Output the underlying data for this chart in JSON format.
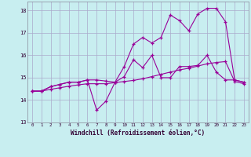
{
  "xlabel": "Windchill (Refroidissement éolien,°C)",
  "bg_color": "#c8eef0",
  "grid_color": "#aaaacc",
  "line_color": "#990099",
  "xmin": -0.5,
  "xmax": 23.5,
  "ymin": 13,
  "ymax": 18.4,
  "yticks": [
    13,
    14,
    15,
    16,
    17,
    18
  ],
  "xticks": [
    0,
    1,
    2,
    3,
    4,
    5,
    6,
    7,
    8,
    9,
    10,
    11,
    12,
    13,
    14,
    15,
    16,
    17,
    18,
    19,
    20,
    21,
    22,
    23
  ],
  "line1_x": [
    0,
    1,
    2,
    3,
    4,
    5,
    6,
    7,
    8,
    9,
    10,
    11,
    12,
    13,
    14,
    15,
    16,
    17,
    18,
    19,
    20,
    21,
    22,
    23
  ],
  "line1_y": [
    14.4,
    14.4,
    14.6,
    14.7,
    14.8,
    14.8,
    14.9,
    14.9,
    14.85,
    14.8,
    15.5,
    16.5,
    16.8,
    16.55,
    16.8,
    17.8,
    17.55,
    17.1,
    17.85,
    18.1,
    18.1,
    17.5,
    14.9,
    14.8
  ],
  "line2_x": [
    0,
    1,
    2,
    3,
    4,
    5,
    6,
    7,
    8,
    9,
    10,
    11,
    12,
    13,
    14,
    15,
    16,
    17,
    18,
    19,
    20,
    21,
    22,
    23
  ],
  "line2_y": [
    14.4,
    14.4,
    14.6,
    14.7,
    14.8,
    14.8,
    14.9,
    13.55,
    13.95,
    14.8,
    15.05,
    15.8,
    15.45,
    16.0,
    15.0,
    15.0,
    15.5,
    15.5,
    15.55,
    16.0,
    15.25,
    14.9,
    14.9,
    14.8
  ],
  "line3_x": [
    0,
    1,
    2,
    3,
    4,
    5,
    6,
    7,
    8,
    9,
    10,
    11,
    12,
    13,
    14,
    15,
    16,
    17,
    18,
    19,
    20,
    21,
    22,
    23
  ],
  "line3_y": [
    14.4,
    14.4,
    14.48,
    14.55,
    14.62,
    14.68,
    14.73,
    14.73,
    14.73,
    14.78,
    14.83,
    14.88,
    14.95,
    15.05,
    15.15,
    15.25,
    15.35,
    15.42,
    15.52,
    15.62,
    15.68,
    15.72,
    14.83,
    14.73
  ]
}
